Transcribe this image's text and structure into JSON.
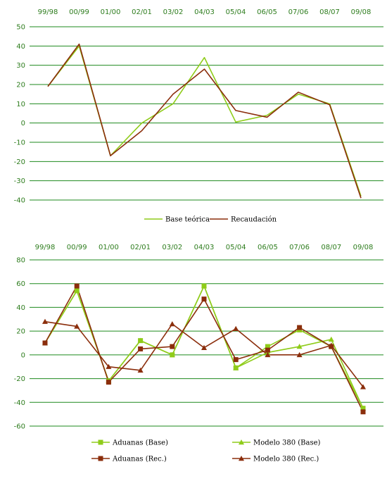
{
  "colors": {
    "grid": "#1e8a1e",
    "axis_text": "#2e7d1e",
    "light_green": "#8fcc1a",
    "dark_red": "#8b2e0c"
  },
  "chart_data": [
    {
      "type": "line",
      "categories": [
        "99/98",
        "00/99",
        "01/00",
        "02/01",
        "03/02",
        "04/03",
        "05/04",
        "06/05",
        "07/06",
        "08/07",
        "09/08"
      ],
      "ylim": [
        -40,
        50
      ],
      "yticks": [
        "50",
        "40",
        "30",
        "20",
        "10",
        "0",
        "-10",
        "-20",
        "-30",
        "-40"
      ],
      "grid": true,
      "legend_position": "bottom",
      "series": [
        {
          "name": "Base teórica",
          "color": "#8fcc1a",
          "marker": "none",
          "values": [
            19,
            40,
            -17,
            0,
            10,
            34,
            0.5,
            4,
            15,
            10,
            -38
          ]
        },
        {
          "name": "Recaudación",
          "color": "#8b2e0c",
          "marker": "none",
          "values": [
            19,
            41,
            -17,
            -4,
            15,
            28,
            6.5,
            3,
            16,
            9.5,
            -39
          ]
        }
      ]
    },
    {
      "type": "line",
      "categories": [
        "99/98",
        "00/99",
        "01/00",
        "02/01",
        "03/02",
        "04/03",
        "05/04",
        "06/05",
        "07/06",
        "08/07",
        "09/08"
      ],
      "ylim": [
        -60,
        80
      ],
      "yticks": [
        "80",
        "60",
        "40",
        "20",
        "0",
        "-20",
        "-40",
        "-60"
      ],
      "grid": true,
      "legend_position": "bottom",
      "series": [
        {
          "name": "Aduanas (Base)",
          "color": "#8fcc1a",
          "marker": "square",
          "values": [
            10,
            54,
            -22,
            12,
            0,
            58,
            -11,
            7,
            21,
            7,
            -45
          ]
        },
        {
          "name": "Modelo 380 (Base)",
          "color": "#8fcc1a",
          "marker": "triangle",
          "values": [
            10,
            54,
            -22,
            12,
            0,
            58,
            -11,
            2,
            7,
            13,
            -45
          ]
        },
        {
          "name": "Aduanas (Rec.)",
          "color": "#8b2e0c",
          "marker": "square",
          "values": [
            10,
            58,
            -23,
            5,
            7,
            47,
            -4,
            4,
            23,
            7,
            -48
          ]
        },
        {
          "name": "Modelo 380 (Rec.)",
          "color": "#8b2e0c",
          "marker": "triangle",
          "values": [
            28,
            24,
            -10,
            -13,
            26,
            6,
            22,
            0,
            0,
            8,
            -27
          ]
        }
      ]
    }
  ]
}
